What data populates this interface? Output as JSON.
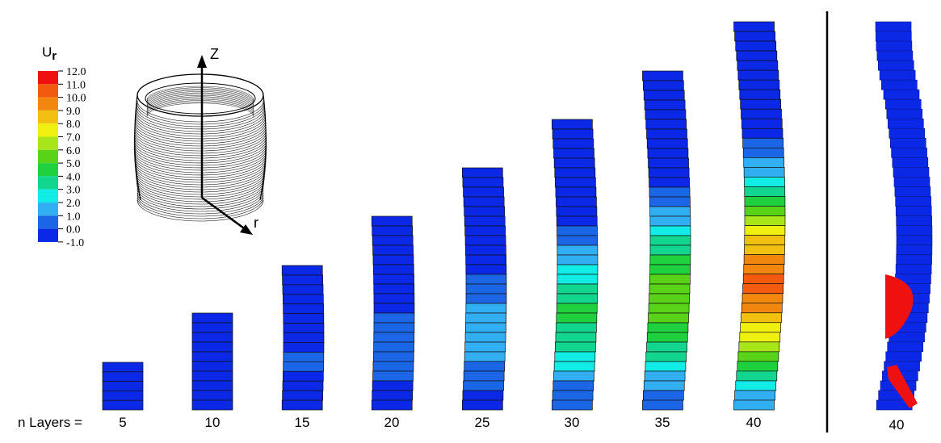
{
  "legend": {
    "title_main": "U",
    "title_sub": "r",
    "labels": [
      "12.0",
      "11.0",
      "10.0",
      "9.0",
      "8.0",
      "7.0",
      "6.0",
      "5.0",
      "4.0",
      "3.0",
      "2.0",
      "1.0",
      "0.0",
      "-1.0"
    ],
    "colors": [
      "#ef1010",
      "#f25a0f",
      "#f2870f",
      "#f2c010",
      "#f0f010",
      "#a8e61a",
      "#58d318",
      "#1fd13f",
      "#12d58f",
      "#12ece6",
      "#32aff2",
      "#1a66e6",
      "#0a28e6"
    ]
  },
  "axes": {
    "z_label": "Z",
    "r_label": "r"
  },
  "layers_label": "n Layers =",
  "columns": [
    {
      "label": "5",
      "layers": 5
    },
    {
      "label": "10",
      "layers": 10
    },
    {
      "label": "15",
      "layers": 15
    },
    {
      "label": "20",
      "layers": 20
    },
    {
      "label": "25",
      "layers": 25
    },
    {
      "label": "30",
      "layers": 30
    },
    {
      "label": "35",
      "layers": 35
    },
    {
      "label": "40",
      "layers": 40
    }
  ],
  "side_column": {
    "label": "40",
    "layers": 40
  }
}
